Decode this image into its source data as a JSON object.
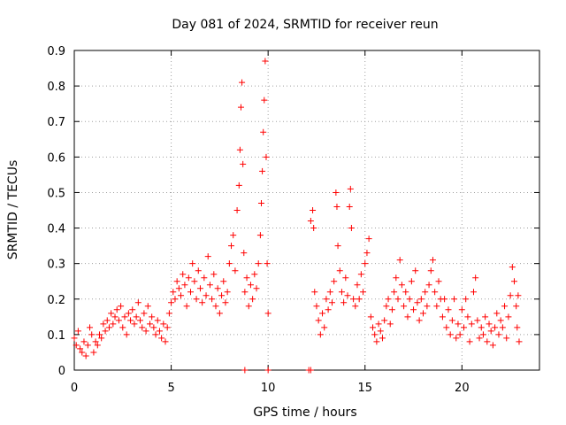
{
  "chart_data": {
    "type": "scatter",
    "title": "Day 081 of 2024, SRMTID for receiver reun",
    "xlabel": "GPS time / hours",
    "ylabel": "SRMTID / TECUs",
    "xlim": [
      0,
      24
    ],
    "ylim": [
      0,
      0.9
    ],
    "x_ticks": [
      0,
      5,
      10,
      15,
      20
    ],
    "x_tick_labels": [
      "0",
      "5",
      "10",
      "15",
      "20"
    ],
    "y_ticks": [
      0,
      0.1,
      0.2,
      0.3,
      0.4,
      0.5,
      0.6,
      0.7,
      0.8,
      0.9
    ],
    "y_tick_labels": [
      "0",
      "0.1",
      "0.2",
      "0.3",
      "0.4",
      "0.5",
      "0.6",
      "0.7",
      "0.8",
      "0.9"
    ],
    "grid": true,
    "marker": "+",
    "color": "#ff0000",
    "series": [
      {
        "name": "SRMTID",
        "points": [
          [
            0.0,
            0.09
          ],
          [
            0.1,
            0.07
          ],
          [
            0.2,
            0.11
          ],
          [
            0.3,
            0.06
          ],
          [
            0.4,
            0.05
          ],
          [
            0.5,
            0.08
          ],
          [
            0.6,
            0.04
          ],
          [
            0.7,
            0.07
          ],
          [
            0.8,
            0.12
          ],
          [
            0.9,
            0.1
          ],
          [
            1.0,
            0.05
          ],
          [
            1.1,
            0.08
          ],
          [
            1.2,
            0.07
          ],
          [
            1.3,
            0.1
          ],
          [
            1.4,
            0.09
          ],
          [
            1.5,
            0.13
          ],
          [
            1.6,
            0.11
          ],
          [
            1.7,
            0.14
          ],
          [
            1.8,
            0.12
          ],
          [
            1.9,
            0.16
          ],
          [
            2.0,
            0.13
          ],
          [
            2.1,
            0.15
          ],
          [
            2.2,
            0.17
          ],
          [
            2.3,
            0.14
          ],
          [
            2.4,
            0.18
          ],
          [
            2.5,
            0.12
          ],
          [
            2.6,
            0.15
          ],
          [
            2.7,
            0.1
          ],
          [
            2.8,
            0.16
          ],
          [
            2.9,
            0.14
          ],
          [
            3.0,
            0.17
          ],
          [
            3.1,
            0.13
          ],
          [
            3.2,
            0.15
          ],
          [
            3.3,
            0.19
          ],
          [
            3.4,
            0.14
          ],
          [
            3.5,
            0.12
          ],
          [
            3.6,
            0.16
          ],
          [
            3.7,
            0.11
          ],
          [
            3.8,
            0.18
          ],
          [
            3.9,
            0.13
          ],
          [
            4.0,
            0.15
          ],
          [
            4.1,
            0.12
          ],
          [
            4.2,
            0.1
          ],
          [
            4.3,
            0.14
          ],
          [
            4.4,
            0.11
          ],
          [
            4.5,
            0.09
          ],
          [
            4.6,
            0.13
          ],
          [
            4.7,
            0.08
          ],
          [
            4.8,
            0.12
          ],
          [
            4.9,
            0.16
          ],
          [
            5.0,
            0.19
          ],
          [
            5.1,
            0.22
          ],
          [
            5.2,
            0.2
          ],
          [
            5.3,
            0.25
          ],
          [
            5.4,
            0.23
          ],
          [
            5.5,
            0.21
          ],
          [
            5.6,
            0.27
          ],
          [
            5.7,
            0.24
          ],
          [
            5.8,
            0.18
          ],
          [
            5.9,
            0.26
          ],
          [
            6.0,
            0.22
          ],
          [
            6.1,
            0.3
          ],
          [
            6.2,
            0.25
          ],
          [
            6.3,
            0.2
          ],
          [
            6.4,
            0.28
          ],
          [
            6.5,
            0.23
          ],
          [
            6.6,
            0.19
          ],
          [
            6.7,
            0.26
          ],
          [
            6.8,
            0.21
          ],
          [
            6.9,
            0.32
          ],
          [
            7.0,
            0.24
          ],
          [
            7.1,
            0.2
          ],
          [
            7.2,
            0.27
          ],
          [
            7.3,
            0.18
          ],
          [
            7.4,
            0.23
          ],
          [
            7.5,
            0.16
          ],
          [
            7.6,
            0.21
          ],
          [
            7.7,
            0.25
          ],
          [
            7.8,
            0.19
          ],
          [
            7.9,
            0.22
          ],
          [
            8.0,
            0.3
          ],
          [
            8.1,
            0.35
          ],
          [
            8.2,
            0.38
          ],
          [
            8.3,
            0.28
          ],
          [
            8.4,
            0.45
          ],
          [
            8.5,
            0.52
          ],
          [
            8.55,
            0.62
          ],
          [
            8.6,
            0.74
          ],
          [
            8.65,
            0.81
          ],
          [
            8.7,
            0.58
          ],
          [
            8.75,
            0.33
          ],
          [
            8.8,
            0.22
          ],
          [
            8.9,
            0.26
          ],
          [
            9.0,
            0.18
          ],
          [
            9.1,
            0.24
          ],
          [
            9.2,
            0.2
          ],
          [
            9.3,
            0.27
          ],
          [
            9.4,
            0.23
          ],
          [
            9.5,
            0.3
          ],
          [
            9.6,
            0.38
          ],
          [
            9.65,
            0.47
          ],
          [
            9.7,
            0.56
          ],
          [
            9.75,
            0.67
          ],
          [
            9.8,
            0.76
          ],
          [
            9.85,
            0.87
          ],
          [
            9.9,
            0.6
          ],
          [
            9.95,
            0.3
          ],
          [
            10.0,
            0.16
          ],
          [
            8.8,
            0.0
          ],
          [
            10.0,
            0.0
          ],
          [
            12.1,
            0.0
          ],
          [
            12.2,
            0.0
          ],
          [
            12.2,
            0.42
          ],
          [
            12.3,
            0.45
          ],
          [
            12.35,
            0.4
          ],
          [
            12.4,
            0.22
          ],
          [
            12.5,
            0.18
          ],
          [
            12.6,
            0.14
          ],
          [
            12.7,
            0.1
          ],
          [
            12.8,
            0.16
          ],
          [
            12.9,
            0.12
          ],
          [
            13.0,
            0.2
          ],
          [
            13.1,
            0.17
          ],
          [
            13.2,
            0.22
          ],
          [
            13.3,
            0.19
          ],
          [
            13.4,
            0.25
          ],
          [
            13.5,
            0.5
          ],
          [
            13.55,
            0.46
          ],
          [
            13.6,
            0.35
          ],
          [
            13.7,
            0.28
          ],
          [
            13.8,
            0.22
          ],
          [
            13.9,
            0.19
          ],
          [
            14.0,
            0.26
          ],
          [
            14.1,
            0.21
          ],
          [
            14.2,
            0.46
          ],
          [
            14.25,
            0.51
          ],
          [
            14.3,
            0.4
          ],
          [
            14.4,
            0.2
          ],
          [
            14.5,
            0.18
          ],
          [
            14.6,
            0.24
          ],
          [
            14.7,
            0.2
          ],
          [
            14.8,
            0.27
          ],
          [
            14.9,
            0.22
          ],
          [
            15.0,
            0.3
          ],
          [
            15.1,
            0.33
          ],
          [
            15.2,
            0.37
          ],
          [
            15.3,
            0.15
          ],
          [
            15.4,
            0.12
          ],
          [
            15.5,
            0.1
          ],
          [
            15.6,
            0.08
          ],
          [
            15.7,
            0.13
          ],
          [
            15.8,
            0.11
          ],
          [
            15.9,
            0.09
          ],
          [
            16.0,
            0.14
          ],
          [
            16.1,
            0.18
          ],
          [
            16.2,
            0.2
          ],
          [
            16.3,
            0.13
          ],
          [
            16.4,
            0.17
          ],
          [
            16.5,
            0.22
          ],
          [
            16.6,
            0.26
          ],
          [
            16.7,
            0.2
          ],
          [
            16.8,
            0.31
          ],
          [
            16.9,
            0.24
          ],
          [
            17.0,
            0.18
          ],
          [
            17.1,
            0.22
          ],
          [
            17.2,
            0.15
          ],
          [
            17.3,
            0.2
          ],
          [
            17.4,
            0.25
          ],
          [
            17.5,
            0.17
          ],
          [
            17.6,
            0.28
          ],
          [
            17.7,
            0.19
          ],
          [
            17.8,
            0.14
          ],
          [
            17.9,
            0.2
          ],
          [
            18.0,
            0.16
          ],
          [
            18.1,
            0.22
          ],
          [
            18.2,
            0.18
          ],
          [
            18.3,
            0.24
          ],
          [
            18.4,
            0.28
          ],
          [
            18.5,
            0.31
          ],
          [
            18.6,
            0.22
          ],
          [
            18.7,
            0.18
          ],
          [
            18.8,
            0.25
          ],
          [
            18.9,
            0.2
          ],
          [
            19.0,
            0.15
          ],
          [
            19.1,
            0.2
          ],
          [
            19.2,
            0.12
          ],
          [
            19.3,
            0.17
          ],
          [
            19.4,
            0.1
          ],
          [
            19.5,
            0.14
          ],
          [
            19.6,
            0.2
          ],
          [
            19.7,
            0.09
          ],
          [
            19.8,
            0.13
          ],
          [
            19.9,
            0.1
          ],
          [
            20.0,
            0.17
          ],
          [
            20.1,
            0.12
          ],
          [
            20.2,
            0.2
          ],
          [
            20.3,
            0.15
          ],
          [
            20.4,
            0.08
          ],
          [
            20.5,
            0.13
          ],
          [
            20.6,
            0.22
          ],
          [
            20.7,
            0.26
          ],
          [
            20.8,
            0.14
          ],
          [
            20.9,
            0.09
          ],
          [
            21.0,
            0.12
          ],
          [
            21.1,
            0.1
          ],
          [
            21.2,
            0.15
          ],
          [
            21.3,
            0.08
          ],
          [
            21.4,
            0.13
          ],
          [
            21.5,
            0.11
          ],
          [
            21.6,
            0.07
          ],
          [
            21.7,
            0.12
          ],
          [
            21.8,
            0.16
          ],
          [
            21.9,
            0.1
          ],
          [
            22.0,
            0.14
          ],
          [
            22.1,
            0.12
          ],
          [
            22.2,
            0.18
          ],
          [
            22.3,
            0.09
          ],
          [
            22.4,
            0.15
          ],
          [
            22.5,
            0.21
          ],
          [
            22.6,
            0.29
          ],
          [
            22.7,
            0.25
          ],
          [
            22.8,
            0.18
          ],
          [
            22.85,
            0.12
          ],
          [
            22.9,
            0.21
          ],
          [
            22.95,
            0.08
          ]
        ]
      }
    ]
  }
}
